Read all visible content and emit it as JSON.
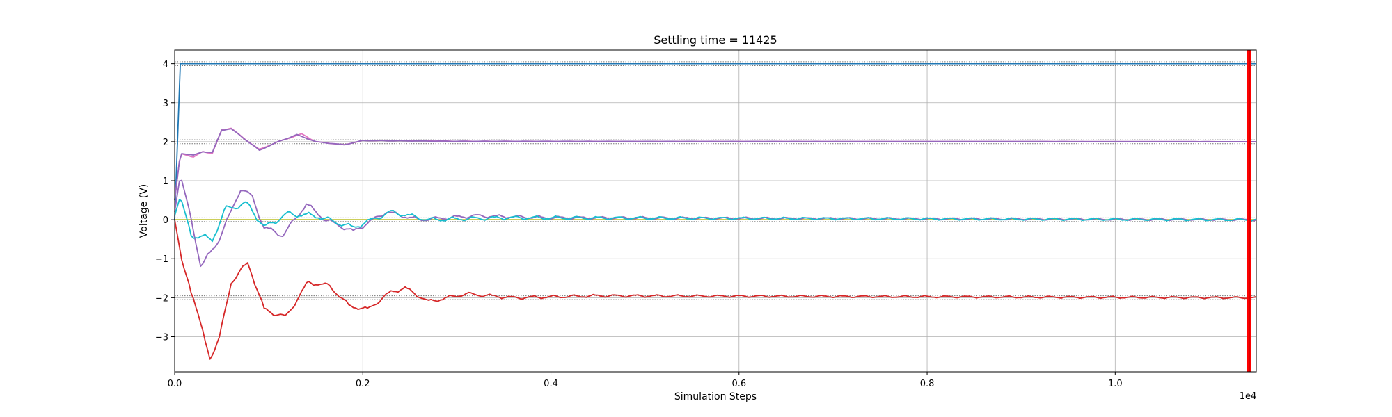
{
  "chart_data": {
    "type": "line",
    "title": "Settling time = 11425",
    "xlabel": "Simulation Steps",
    "ylabel": "Voltage (V)",
    "x_offset_label": "1e4",
    "xlim": [
      0,
      11500
    ],
    "ylim": [
      -3.9,
      4.35
    ],
    "x_ticks": [
      0,
      2000,
      4000,
      6000,
      8000,
      10000
    ],
    "x_tick_labels": [
      "0.0",
      "0.2",
      "0.4",
      "0.6",
      "0.8",
      "1.0"
    ],
    "y_ticks": [
      -3,
      -2,
      -1,
      0,
      1,
      2,
      3,
      4
    ],
    "y_tick_labels": [
      "−3",
      "−2",
      "−1",
      "0",
      "1",
      "2",
      "3",
      "4"
    ],
    "grid": true,
    "settling_line": {
      "x": 11425,
      "color": "#ff0000"
    },
    "reference_bands": [
      {
        "center": 4,
        "half_width": 0.05
      },
      {
        "center": 2,
        "half_width": 0.05
      },
      {
        "center": 0,
        "half_width": 0.05
      },
      {
        "center": -2,
        "half_width": 0.05
      }
    ],
    "series": [
      {
        "color": "#1f77b4",
        "target": 4,
        "shape": "step",
        "points": [
          [
            0,
            0
          ],
          [
            60,
            4.0
          ],
          [
            11500,
            4.0
          ]
        ]
      },
      {
        "color": "#e377c2",
        "target": 2,
        "shape": "damped",
        "points": [
          [
            0,
            0.5
          ],
          [
            60,
            1.7
          ],
          [
            200,
            1.6
          ],
          [
            300,
            1.75
          ],
          [
            400,
            1.7
          ],
          [
            500,
            2.3
          ],
          [
            600,
            2.35
          ],
          [
            700,
            2.15
          ],
          [
            900,
            1.8
          ],
          [
            1100,
            2.0
          ],
          [
            1350,
            2.2
          ],
          [
            1500,
            2.0
          ],
          [
            1800,
            1.92
          ],
          [
            2000,
            2.03
          ],
          [
            2500,
            2.03
          ],
          [
            3000,
            2.01
          ],
          [
            11500,
            2.0
          ]
        ],
        "ripple": 0.01
      },
      {
        "color": "#9467bd",
        "target": 2,
        "shape": "damped",
        "points": [
          [
            0,
            0.5
          ],
          [
            60,
            1.7
          ],
          [
            200,
            1.65
          ],
          [
            300,
            1.75
          ],
          [
            400,
            1.72
          ],
          [
            500,
            2.3
          ],
          [
            600,
            2.33
          ],
          [
            700,
            2.15
          ],
          [
            900,
            1.78
          ],
          [
            1100,
            2.0
          ],
          [
            1300,
            2.18
          ],
          [
            1500,
            2.0
          ],
          [
            1800,
            1.92
          ],
          [
            2000,
            2.03
          ],
          [
            2500,
            2.02
          ],
          [
            3000,
            2.01
          ],
          [
            11500,
            2.0
          ]
        ],
        "ripple": 0.01
      },
      {
        "color": "#bcbd22",
        "target": 0,
        "shape": "flat",
        "points": [
          [
            0,
            0.0
          ],
          [
            11500,
            0.0
          ]
        ]
      },
      {
        "color": "#9467bd",
        "target": 0,
        "shape": "oscillating",
        "points": [
          [
            0,
            0.2
          ],
          [
            60,
            1.15
          ],
          [
            150,
            0.3
          ],
          [
            280,
            -1.2
          ],
          [
            450,
            -0.6
          ],
          [
            600,
            0.2
          ],
          [
            700,
            0.8
          ],
          [
            820,
            0.6
          ],
          [
            950,
            -0.2
          ],
          [
            1150,
            -0.4
          ],
          [
            1400,
            0.4
          ],
          [
            1600,
            0.0
          ],
          [
            1900,
            -0.3
          ],
          [
            2250,
            0.2
          ],
          [
            2600,
            0.0
          ],
          [
            3200,
            0.1
          ],
          [
            4000,
            0.05
          ],
          [
            11500,
            0.0
          ]
        ],
        "ripple": 0.06
      },
      {
        "color": "#17becf",
        "target": 0,
        "shape": "oscillating",
        "points": [
          [
            0,
            0.1
          ],
          [
            60,
            0.6
          ],
          [
            180,
            -0.4
          ],
          [
            400,
            -0.5
          ],
          [
            550,
            0.3
          ],
          [
            780,
            0.4
          ],
          [
            950,
            -0.2
          ],
          [
            1200,
            0.15
          ],
          [
            1500,
            0.1
          ],
          [
            1900,
            -0.2
          ],
          [
            2300,
            0.2
          ],
          [
            2700,
            0.0
          ],
          [
            3500,
            0.05
          ],
          [
            11500,
            0.0
          ]
        ],
        "ripple": 0.07
      },
      {
        "color": "#d62728",
        "target": -2,
        "shape": "oscillating",
        "points": [
          [
            0,
            0.0
          ],
          [
            80,
            -1.1
          ],
          [
            200,
            -2.0
          ],
          [
            320,
            -3.1
          ],
          [
            380,
            -3.55
          ],
          [
            480,
            -3.0
          ],
          [
            600,
            -1.6
          ],
          [
            780,
            -1.1
          ],
          [
            950,
            -2.3
          ],
          [
            1180,
            -2.5
          ],
          [
            1420,
            -1.6
          ],
          [
            1650,
            -1.7
          ],
          [
            1850,
            -2.2
          ],
          [
            2050,
            -2.3
          ],
          [
            2300,
            -1.85
          ],
          [
            2450,
            -1.75
          ],
          [
            2700,
            -2.1
          ],
          [
            3100,
            -1.9
          ],
          [
            3600,
            -2.0
          ],
          [
            4500,
            -1.95
          ],
          [
            11500,
            -2.0
          ]
        ],
        "ripple": 0.06
      }
    ]
  }
}
